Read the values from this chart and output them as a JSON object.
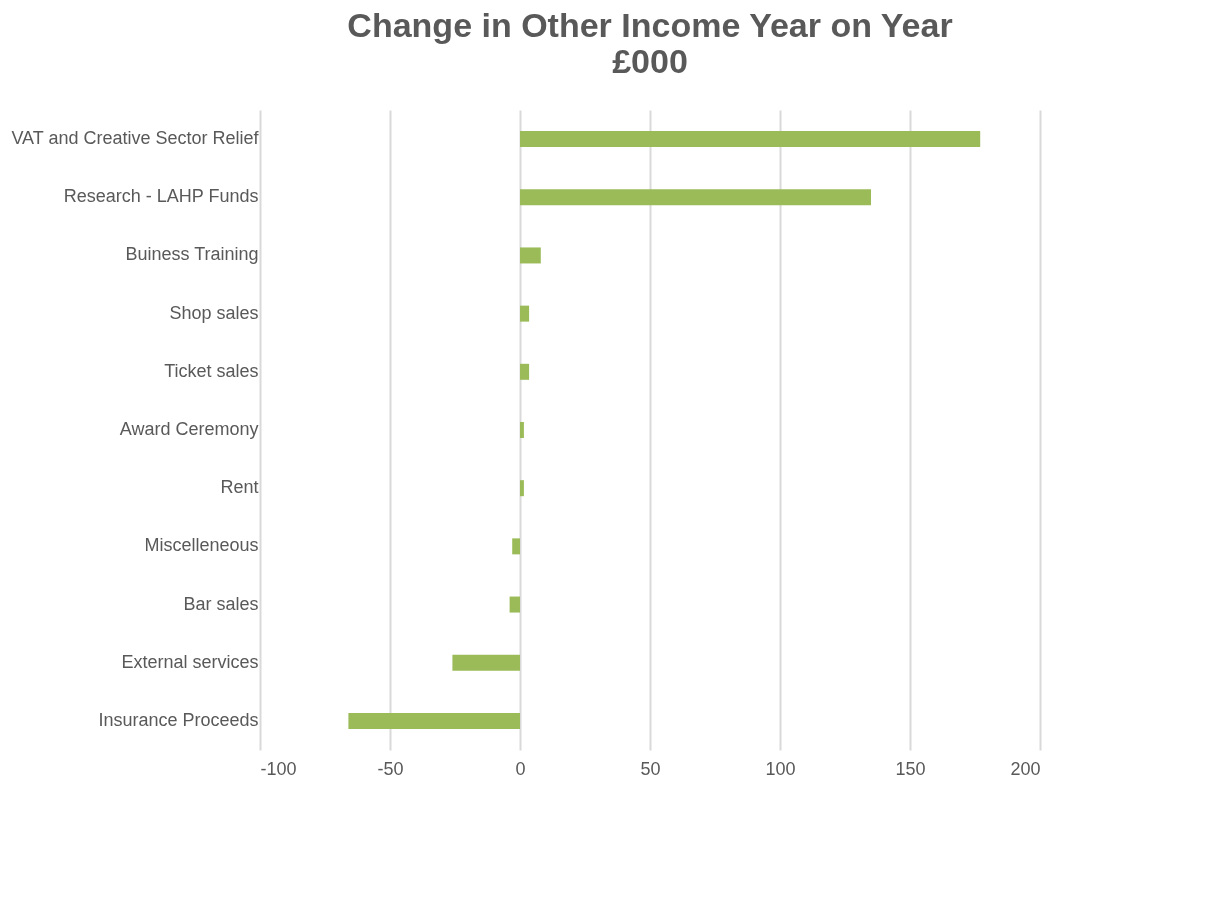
{
  "chart_data": {
    "type": "bar",
    "orientation": "horizontal",
    "title": "Change in Other Income Year on Year\n£000",
    "categories": [
      "VAT and Creative Sector Relief",
      "Research - LAHP Funds",
      "Buiness Training",
      "Shop sales",
      "Ticket sales",
      "Award Ceremony",
      "Rent",
      "Miscelleneous",
      "Bar sales",
      "External services",
      "Insurance Proceeds"
    ],
    "values": [
      177,
      135,
      8,
      3.5,
      3.5,
      1.5,
      1.5,
      -3,
      -4,
      -26,
      -66
    ],
    "color": "#9bbb59",
    "xlim": [
      -100,
      200
    ],
    "xticks": [
      -100,
      -50,
      0,
      50,
      100,
      150,
      200
    ],
    "grid": "x"
  }
}
